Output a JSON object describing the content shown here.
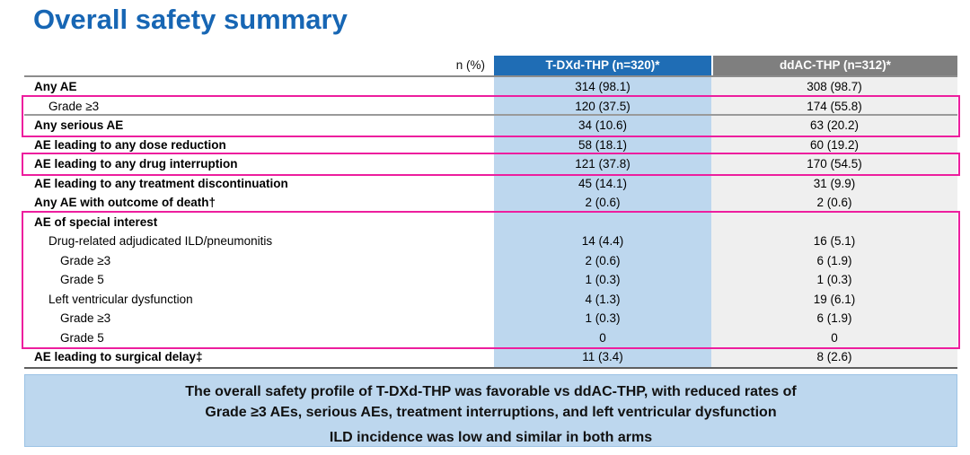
{
  "title": "Overall safety summary",
  "table": {
    "unit_label": "n (%)",
    "columns": [
      {
        "label": "T-DXd-THP (n=320)*"
      },
      {
        "label": "ddAC-THP (n=312)*"
      }
    ],
    "rows": [
      {
        "label": "Any AE",
        "indent": 0,
        "bold": true,
        "values": [
          "314 (98.1)",
          "308 (98.7)"
        ]
      },
      {
        "label": "Grade ≥3",
        "indent": 1,
        "bold": false,
        "values": [
          "120 (37.5)",
          "174 (55.8)"
        ]
      },
      {
        "label": "Any serious AE",
        "indent": 0,
        "bold": true,
        "values": [
          "34 (10.6)",
          "63 (20.2)"
        ]
      },
      {
        "label": "AE leading to any dose reduction",
        "indent": 0,
        "bold": true,
        "values": [
          "58 (18.1)",
          "60 (19.2)"
        ]
      },
      {
        "label": "AE leading to any drug interruption",
        "indent": 0,
        "bold": true,
        "values": [
          "121 (37.8)",
          "170 (54.5)"
        ]
      },
      {
        "label": "AE leading to any treatment discontinuation",
        "indent": 0,
        "bold": true,
        "values": [
          "45 (14.1)",
          "31 (9.9)"
        ]
      },
      {
        "label": "Any AE with outcome of death†",
        "indent": 0,
        "bold": true,
        "values": [
          "2 (0.6)",
          "2 (0.6)"
        ]
      },
      {
        "label": "AE of special interest",
        "indent": 0,
        "bold": true,
        "values": [
          "",
          ""
        ]
      },
      {
        "label": "Drug-related adjudicated ILD/pneumonitis",
        "indent": 1,
        "bold": false,
        "values": [
          "14 (4.4)",
          "16 (5.1)"
        ]
      },
      {
        "label": "Grade ≥3",
        "indent": 2,
        "bold": false,
        "values": [
          "2 (0.6)",
          "6 (1.9)"
        ]
      },
      {
        "label": "Grade 5",
        "indent": 2,
        "bold": false,
        "values": [
          "1 (0.3)",
          "1 (0.3)"
        ]
      },
      {
        "label": "Left ventricular dysfunction",
        "indent": 1,
        "bold": false,
        "values": [
          "4 (1.3)",
          "19 (6.1)"
        ]
      },
      {
        "label": "Grade ≥3",
        "indent": 2,
        "bold": false,
        "values": [
          "1 (0.3)",
          "6 (1.9)"
        ]
      },
      {
        "label": "Grade 5",
        "indent": 2,
        "bold": false,
        "values": [
          "0",
          "0"
        ]
      },
      {
        "label": "AE leading to surgical delay‡",
        "indent": 0,
        "bold": true,
        "values": [
          "11 (3.4)",
          "8 (2.6)"
        ]
      }
    ],
    "highlight_boxes": [
      {
        "from_row": 2,
        "to_row": 3
      },
      {
        "from_row": 5,
        "to_row": 5
      },
      {
        "from_row": 8,
        "to_row": 14
      }
    ]
  },
  "summary_box": {
    "line1": "The overall safety profile of T-DXd-THP was favorable vs ddAC-THP, with reduced rates of",
    "line2": "Grade ≥3 AEs, serious AEs, treatment interruptions, and left ventricular dysfunction",
    "line3": "ILD incidence was low and similar in both arms"
  },
  "colors": {
    "title_blue": "#1766b4",
    "header_blue": "#1f6db5",
    "header_gray": "#7f7f7f",
    "column_blue": "#bdd7ee",
    "column_gray": "#efefef",
    "highlight_pink": "#ed1e9e",
    "summary_background": "#bdd7ee"
  }
}
